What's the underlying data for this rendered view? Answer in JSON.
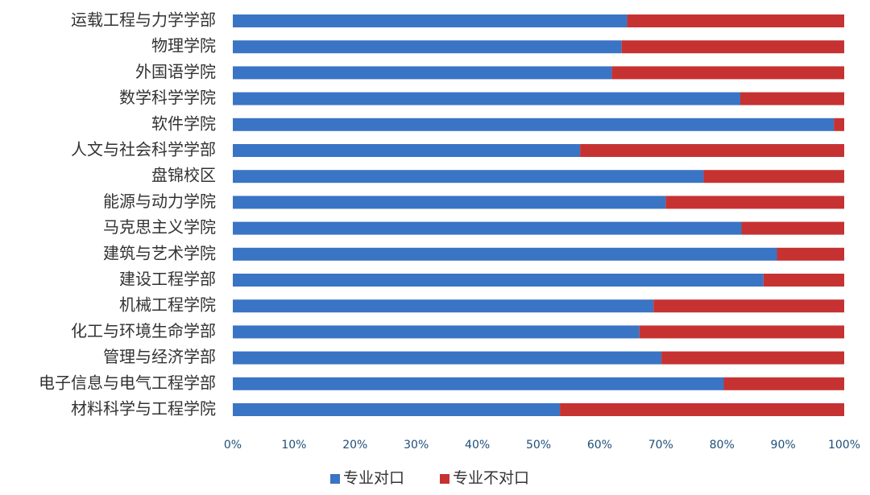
{
  "chart_data": {
    "type": "bar",
    "orientation": "horizontal",
    "stacked": true,
    "title": "",
    "xlabel": "",
    "ylabel": "",
    "xlim": [
      0,
      100
    ],
    "x_ticks": [
      "0%",
      "10%",
      "20%",
      "30%",
      "40%",
      "50%",
      "60%",
      "70%",
      "80%",
      "90%",
      "100%"
    ],
    "grid": false,
    "legend_position": "bottom",
    "categories": [
      "运载工程与力学学部",
      "物理学院",
      "外国语学院",
      "数学科学学院",
      "软件学院",
      "人文与社会科学学部",
      "盘锦校区",
      "能源与动力学院",
      "马克思主义学院",
      "建筑与艺术学院",
      "建设工程学部",
      "机械工程学院",
      "化工与环境生命学部",
      "管理与经济学部",
      "电子信息与电气工程学部",
      "材料科学与工程学院"
    ],
    "series": [
      {
        "name": "专业对口",
        "color": "#3a74c4",
        "values": [
          64.5,
          63.6,
          62,
          83,
          98.3,
          56.8,
          77,
          70.8,
          83.2,
          89,
          86.8,
          68.8,
          66.5,
          70.1,
          80.3,
          53.5
        ]
      },
      {
        "name": "专业不对口",
        "color": "#c63232",
        "values": [
          35.5,
          36.4,
          38,
          17,
          1.7,
          43.2,
          23,
          29.2,
          16.8,
          11,
          13.2,
          31.2,
          33.5,
          29.9,
          19.7,
          46.5
        ]
      }
    ]
  }
}
